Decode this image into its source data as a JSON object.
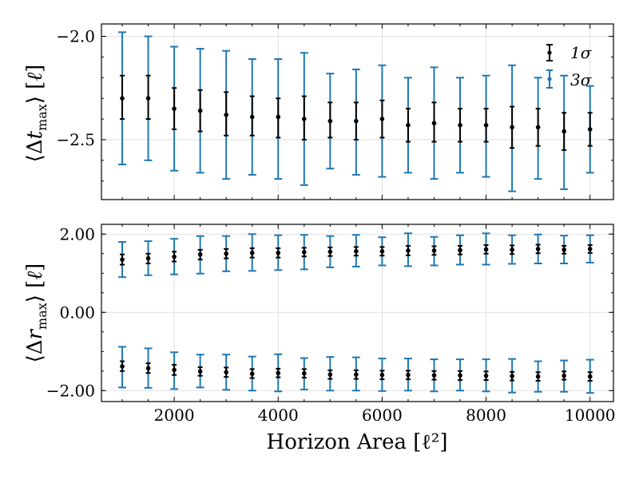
{
  "colors": {
    "one_sigma": "#000000",
    "three_sigma": "#1f77b4"
  },
  "legend": {
    "one_sigma_label": "1σ",
    "three_sigma_label": "3σ",
    "placement": "top-right"
  },
  "xlabel": "Horizon Area [ℓ²]",
  "chart_data": [
    {
      "type": "scatter",
      "name": "top-panel",
      "ylabel": "⟨Δt_max⟩ [ℓ]",
      "xlim": [
        600,
        10450
      ],
      "ylim": [
        -2.79,
        -1.94
      ],
      "x_ticks": [
        2000,
        4000,
        6000,
        8000,
        10000
      ],
      "x_tick_labels": [
        "",
        "",
        "",
        "",
        ""
      ],
      "y_ticks": [
        -2.0,
        -2.5
      ],
      "y_tick_labels": [
        "−2.0",
        "−2.5"
      ],
      "grid": true,
      "x": [
        1000,
        1500,
        2000,
        2500,
        3000,
        3500,
        4000,
        4500,
        5000,
        5500,
        6000,
        6500,
        7000,
        7500,
        8000,
        8500,
        9000,
        9500,
        10000
      ],
      "series": [
        {
          "y": [
            -2.3,
            -2.3,
            -2.35,
            -2.36,
            -2.38,
            -2.39,
            -2.39,
            -2.4,
            -2.41,
            -2.41,
            -2.4,
            -2.43,
            -2.42,
            -2.43,
            -2.43,
            -2.44,
            -2.44,
            -2.46,
            -2.45
          ],
          "one_sigma_low": [
            -2.4,
            -2.4,
            -2.45,
            -2.46,
            -2.48,
            -2.48,
            -2.49,
            -2.5,
            -2.49,
            -2.5,
            -2.49,
            -2.51,
            -2.51,
            -2.51,
            -2.51,
            -2.54,
            -2.53,
            -2.55,
            -2.53
          ],
          "one_sigma_high": [
            -2.19,
            -2.19,
            -2.25,
            -2.26,
            -2.27,
            -2.29,
            -2.3,
            -2.29,
            -2.32,
            -2.32,
            -2.31,
            -2.35,
            -2.32,
            -2.35,
            -2.35,
            -2.34,
            -2.35,
            -2.37,
            -2.37
          ],
          "three_sigma_low": [
            -2.62,
            -2.6,
            -2.65,
            -2.66,
            -2.69,
            -2.67,
            -2.69,
            -2.72,
            -2.64,
            -2.67,
            -2.68,
            -2.66,
            -2.69,
            -2.66,
            -2.68,
            -2.75,
            -2.69,
            -2.74,
            -2.66
          ],
          "three_sigma_high": [
            -1.98,
            -2.0,
            -2.05,
            -2.06,
            -2.07,
            -2.11,
            -2.11,
            -2.08,
            -2.18,
            -2.16,
            -2.14,
            -2.2,
            -2.15,
            -2.2,
            -2.19,
            -2.14,
            -2.2,
            -2.19,
            -2.24
          ]
        }
      ]
    },
    {
      "type": "scatter",
      "name": "bottom-panel",
      "ylabel": "⟨Δr_max⟩ [ℓ]",
      "xlim": [
        600,
        10450
      ],
      "ylim": [
        -2.28,
        2.25
      ],
      "x_ticks": [
        2000,
        4000,
        6000,
        8000,
        10000
      ],
      "x_tick_labels": [
        "2000",
        "4000",
        "6000",
        "8000",
        "10000"
      ],
      "y_ticks": [
        2.0,
        0.0,
        -2.0
      ],
      "y_tick_labels": [
        "2.00",
        "0.00",
        "−2.00"
      ],
      "grid": true,
      "x": [
        1000,
        1500,
        2000,
        2500,
        3000,
        3500,
        4000,
        4500,
        5000,
        5500,
        6000,
        6500,
        7000,
        7500,
        8000,
        8500,
        9000,
        9500,
        10000
      ],
      "series": [
        {
          "y": [
            1.35,
            1.38,
            1.42,
            1.48,
            1.5,
            1.52,
            1.52,
            1.54,
            1.55,
            1.56,
            1.56,
            1.58,
            1.58,
            1.59,
            1.61,
            1.6,
            1.62,
            1.6,
            1.62
          ],
          "one_sigma_low": [
            1.22,
            1.25,
            1.3,
            1.35,
            1.38,
            1.4,
            1.4,
            1.43,
            1.44,
            1.45,
            1.45,
            1.46,
            1.47,
            1.48,
            1.5,
            1.49,
            1.51,
            1.5,
            1.52
          ],
          "one_sigma_high": [
            1.48,
            1.5,
            1.55,
            1.6,
            1.62,
            1.64,
            1.64,
            1.65,
            1.66,
            1.67,
            1.67,
            1.7,
            1.69,
            1.7,
            1.72,
            1.71,
            1.73,
            1.7,
            1.72
          ],
          "three_sigma_low": [
            0.9,
            0.95,
            0.97,
            0.99,
            1.05,
            1.06,
            1.08,
            1.1,
            1.15,
            1.17,
            1.2,
            1.18,
            1.2,
            1.22,
            1.22,
            1.24,
            1.25,
            1.25,
            1.27
          ],
          "three_sigma_high": [
            1.8,
            1.82,
            1.88,
            1.95,
            1.95,
            2.0,
            1.97,
            1.98,
            1.95,
            1.98,
            1.92,
            2.02,
            1.93,
            1.97,
            2.02,
            1.97,
            1.99,
            1.96,
            1.97
          ]
        },
        {
          "y": [
            -1.38,
            -1.43,
            -1.47,
            -1.51,
            -1.53,
            -1.57,
            -1.55,
            -1.56,
            -1.59,
            -1.59,
            -1.6,
            -1.6,
            -1.61,
            -1.61,
            -1.62,
            -1.63,
            -1.64,
            -1.62,
            -1.64
          ],
          "one_sigma_low": [
            -1.5,
            -1.55,
            -1.6,
            -1.62,
            -1.65,
            -1.68,
            -1.66,
            -1.67,
            -1.7,
            -1.7,
            -1.71,
            -1.71,
            -1.72,
            -1.73,
            -1.73,
            -1.74,
            -1.75,
            -1.72,
            -1.75
          ],
          "one_sigma_high": [
            -1.25,
            -1.3,
            -1.34,
            -1.4,
            -1.41,
            -1.45,
            -1.44,
            -1.45,
            -1.48,
            -1.48,
            -1.49,
            -1.49,
            -1.5,
            -1.5,
            -1.51,
            -1.52,
            -1.53,
            -1.51,
            -1.53
          ],
          "three_sigma_low": [
            -1.92,
            -1.93,
            -1.96,
            -1.92,
            -1.98,
            -2.0,
            -2.02,
            -1.97,
            -2.0,
            -2.0,
            -2.01,
            -2.0,
            -2.02,
            -2.0,
            -2.02,
            -2.05,
            -2.03,
            -2.03,
            -2.06
          ],
          "three_sigma_high": [
            -0.88,
            -0.92,
            -1.02,
            -1.08,
            -1.08,
            -1.13,
            -1.07,
            -1.17,
            -1.14,
            -1.15,
            -1.18,
            -1.18,
            -1.2,
            -1.2,
            -1.2,
            -1.19,
            -1.25,
            -1.23,
            -1.21
          ]
        }
      ]
    }
  ]
}
